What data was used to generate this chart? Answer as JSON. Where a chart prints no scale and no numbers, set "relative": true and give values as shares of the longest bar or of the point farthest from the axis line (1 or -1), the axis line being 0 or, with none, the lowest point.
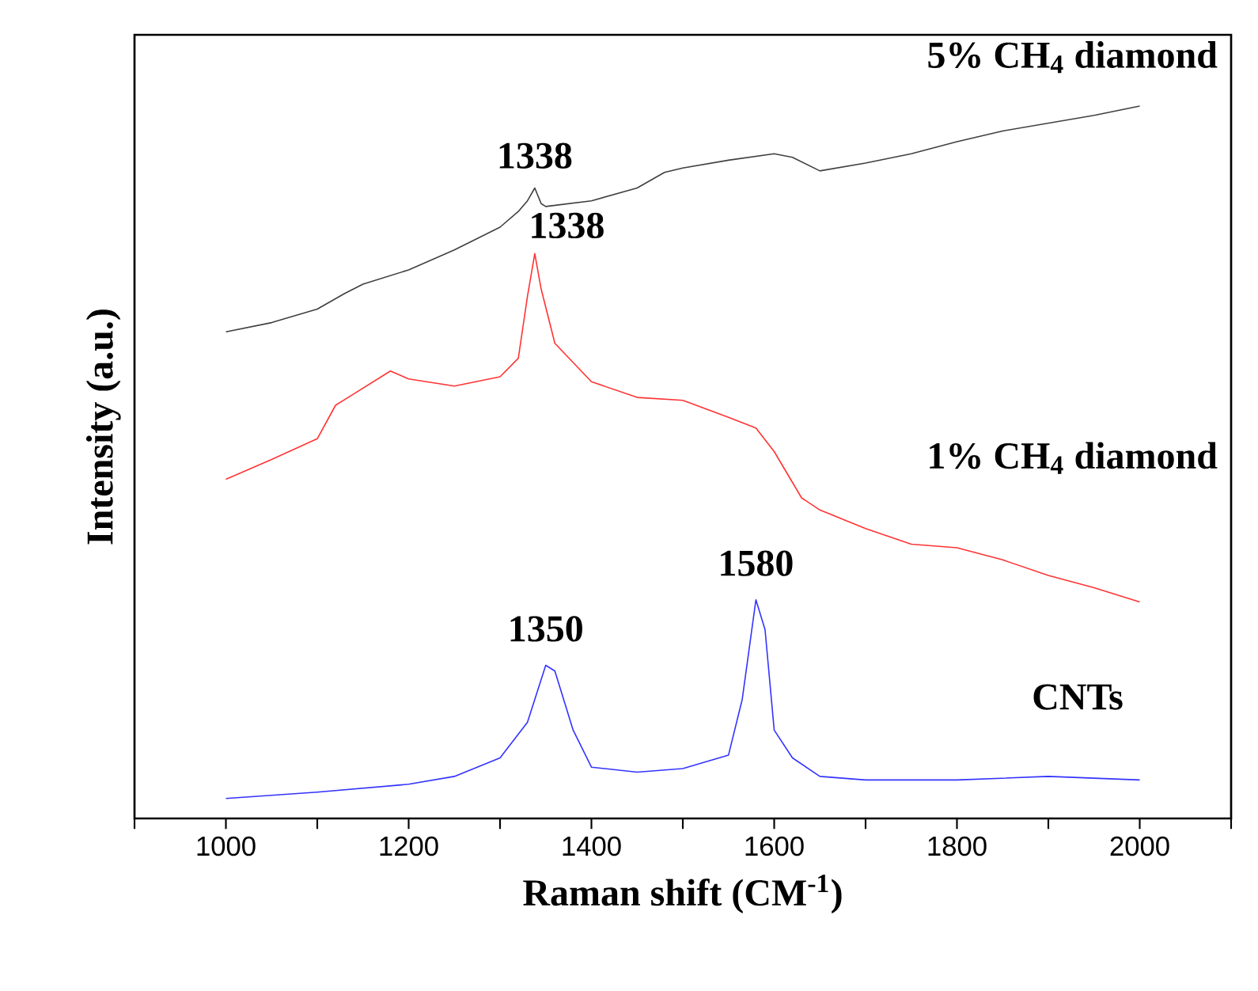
{
  "chart_data": {
    "type": "line",
    "relative": true,
    "xlabel": "Raman shift (CM$^{-1}$)",
    "ylabel": "Intensity (a.u.)",
    "xlim": [
      900,
      2100
    ],
    "xticks": [
      {
        "value": 900,
        "label": null
      },
      1000,
      {
        "value": 1100,
        "label": null
      },
      1200,
      {
        "value": 1300,
        "label": null
      },
      1400,
      {
        "value": 1500,
        "label": null
      },
      1600,
      {
        "value": 1700,
        "label": null
      },
      1800,
      {
        "value": 1900,
        "label": null
      },
      2000,
      {
        "value": 2100,
        "label": null
      }
    ],
    "tick_labels": "x",
    "grid": false,
    "marker": "none",
    "line_style": "solid",
    "series": [
      {
        "name": "5% CH$_{4}$ diamond",
        "color": "#404040",
        "x": [
          1000,
          1050,
          1100,
          1130,
          1150,
          1200,
          1250,
          1300,
          1320,
          1330,
          1338,
          1345,
          1350,
          1400,
          1450,
          1480,
          1500,
          1550,
          1600,
          1620,
          1650,
          1700,
          1750,
          1800,
          1850,
          1900,
          1950,
          2000
        ],
        "values": [
          0.683,
          0.696,
          0.715,
          0.737,
          0.75,
          0.77,
          0.798,
          0.83,
          0.852,
          0.867,
          0.885,
          0.863,
          0.859,
          0.867,
          0.885,
          0.907,
          0.913,
          0.924,
          0.933,
          0.928,
          0.909,
          0.92,
          0.933,
          0.95,
          0.965,
          0.976,
          0.987,
          1
        ]
      },
      {
        "name": "1% CH$_{4}$ diamond",
        "color": "#ff3333",
        "x": [
          1000,
          1050,
          1100,
          1120,
          1140,
          1180,
          1200,
          1250,
          1300,
          1320,
          1330,
          1338,
          1345,
          1360,
          1400,
          1450,
          1500,
          1550,
          1580,
          1600,
          1630,
          1650,
          1700,
          1750,
          1800,
          1850,
          1900,
          1950,
          2000
        ],
        "values": [
          0.476,
          0.504,
          0.533,
          0.58,
          0.596,
          0.628,
          0.617,
          0.607,
          0.62,
          0.646,
          0.733,
          0.793,
          0.743,
          0.667,
          0.613,
          0.591,
          0.587,
          0.563,
          0.548,
          0.515,
          0.45,
          0.433,
          0.407,
          0.385,
          0.38,
          0.363,
          0.341,
          0.324,
          0.304
        ]
      },
      {
        "name": "CNTs",
        "color": "#3333ff",
        "x": [
          1000,
          1100,
          1200,
          1250,
          1300,
          1330,
          1350,
          1360,
          1380,
          1400,
          1450,
          1500,
          1550,
          1565,
          1580,
          1590,
          1600,
          1620,
          1650,
          1700,
          1800,
          1900,
          2000
        ],
        "values": [
          0.028,
          0.037,
          0.048,
          0.059,
          0.085,
          0.135,
          0.215,
          0.207,
          0.124,
          0.072,
          0.065,
          0.07,
          0.089,
          0.167,
          0.307,
          0.265,
          0.124,
          0.085,
          0.059,
          0.054,
          0.054,
          0.059,
          0.054
        ]
      }
    ],
    "annotations": [
      {
        "text": "1338",
        "x": 1338,
        "y": 0.885
      },
      {
        "text": "1338",
        "x": 1338,
        "y": 0.793
      },
      {
        "text": "1350",
        "x": 1350,
        "y": 0.215
      },
      {
        "text": "1580",
        "x": 1580,
        "y": 0.307
      }
    ]
  }
}
